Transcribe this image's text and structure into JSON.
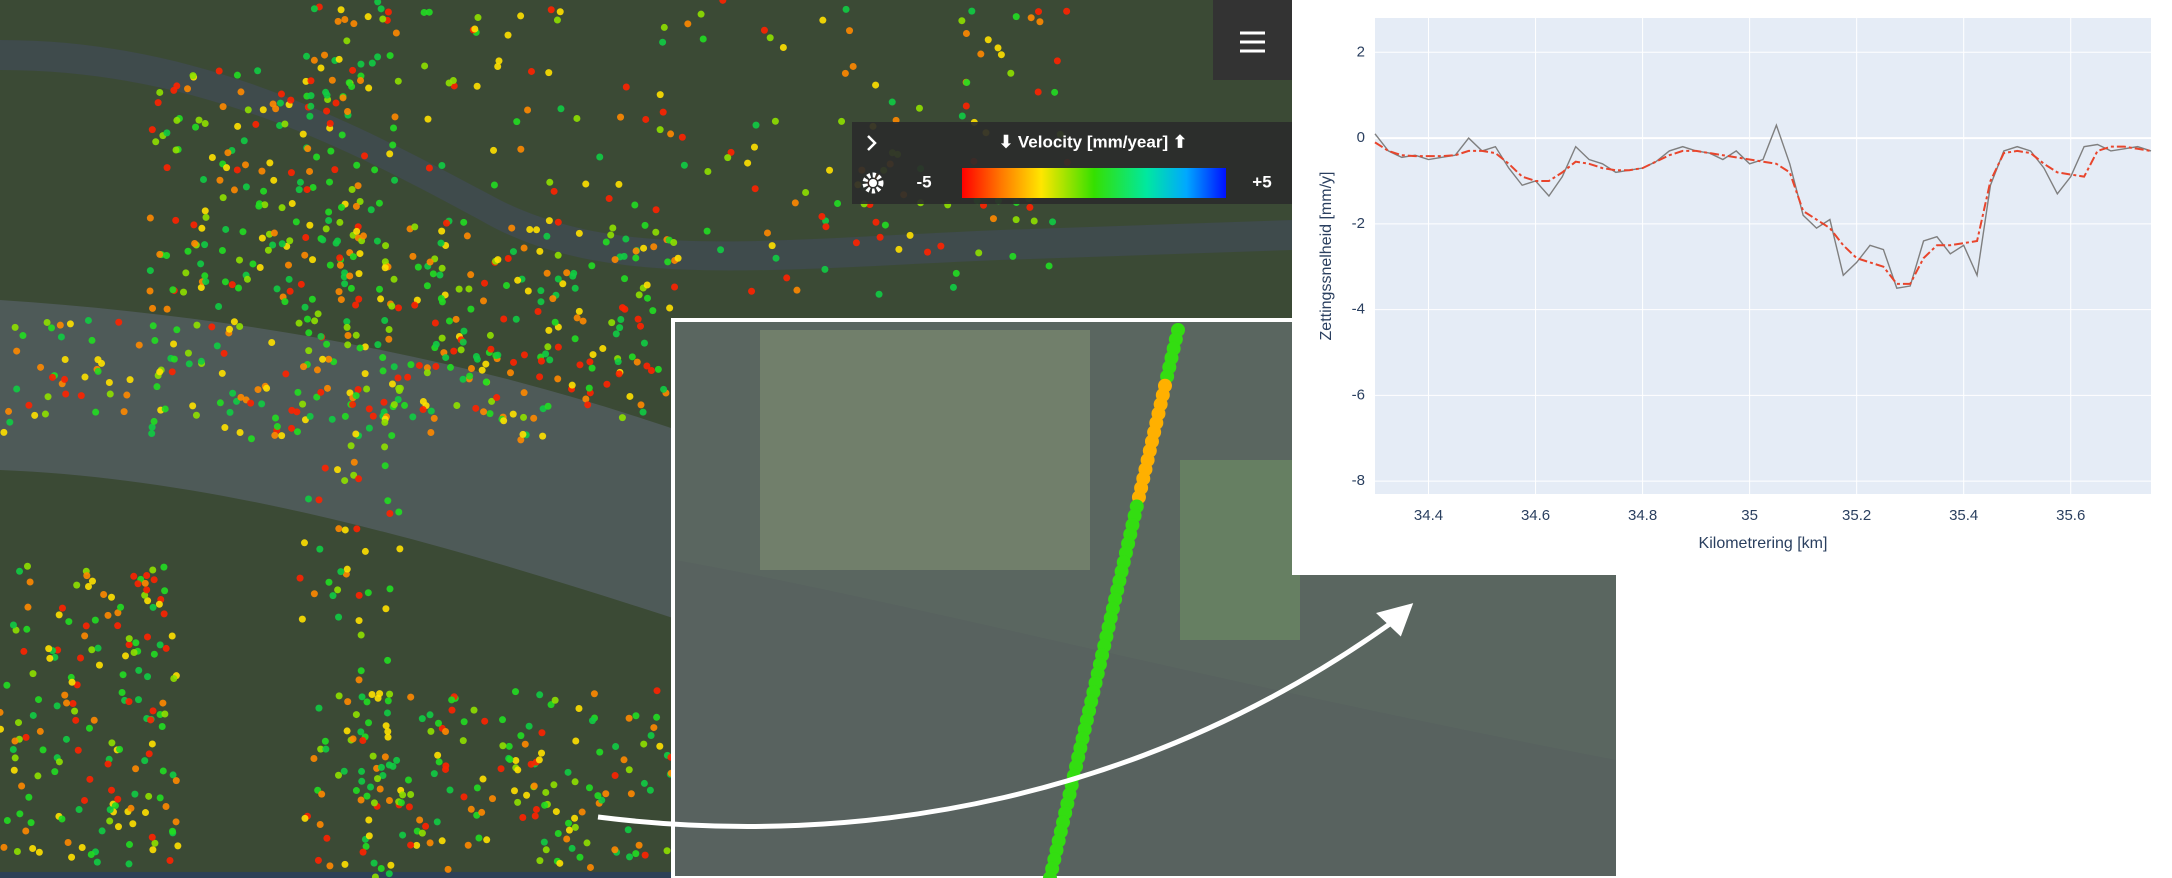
{
  "legend": {
    "title": "⬇ Velocity [mm/year] ⬆",
    "min": "-5",
    "max": "+5"
  },
  "chart_data": {
    "type": "line",
    "x_label": "Kilometrering [km]",
    "y_label": "Zettingssnelheid [mm/y]",
    "x": [
      34.3,
      34.325,
      34.35,
      34.375,
      34.4,
      34.425,
      34.45,
      34.475,
      34.5,
      34.525,
      34.55,
      34.575,
      34.6,
      34.625,
      34.65,
      34.675,
      34.7,
      34.725,
      34.75,
      34.775,
      34.8,
      34.825,
      34.85,
      34.875,
      34.9,
      34.925,
      34.95,
      34.975,
      35,
      35.025,
      35.05,
      35.075,
      35.1,
      35.125,
      35.15,
      35.175,
      35.2,
      35.225,
      35.25,
      35.275,
      35.3,
      35.325,
      35.35,
      35.375,
      35.4,
      35.425,
      35.45,
      35.475,
      35.5,
      35.525,
      35.55,
      35.575,
      35.6,
      35.625,
      35.65,
      35.675,
      35.7,
      35.725,
      35.75
    ],
    "series": [
      {
        "color": "#7f7f7f",
        "dash": "solid",
        "values": [
          0.1,
          -0.3,
          -0.45,
          -0.4,
          -0.5,
          -0.45,
          -0.4,
          0,
          -0.3,
          -0.2,
          -0.7,
          -1.1,
          -1,
          -1.35,
          -0.9,
          -0.2,
          -0.5,
          -0.6,
          -0.8,
          -0.75,
          -0.7,
          -0.55,
          -0.3,
          -0.2,
          -0.3,
          -0.35,
          -0.5,
          -0.3,
          -0.6,
          -0.5,
          0.3,
          -0.6,
          -1.8,
          -2.1,
          -1.9,
          -3.2,
          -2.9,
          -2.5,
          -2.6,
          -3.5,
          -3.45,
          -2.4,
          -2.3,
          -2.7,
          -2.5,
          -3.2,
          -1.1,
          -0.3,
          -0.2,
          -0.3,
          -0.7,
          -1.3,
          -0.9,
          -0.2,
          -0.15,
          -0.3,
          -0.25,
          -0.2,
          -0.3
        ]
      },
      {
        "color": "#e8452c",
        "dash": "dashdot",
        "values": [
          -0.1,
          -0.3,
          -0.4,
          -0.42,
          -0.42,
          -0.42,
          -0.4,
          -0.3,
          -0.3,
          -0.35,
          -0.6,
          -0.9,
          -1,
          -1,
          -0.8,
          -0.55,
          -0.6,
          -0.7,
          -0.75,
          -0.75,
          -0.7,
          -0.55,
          -0.4,
          -0.3,
          -0.3,
          -0.35,
          -0.4,
          -0.45,
          -0.5,
          -0.55,
          -0.6,
          -0.8,
          -1.7,
          -1.9,
          -2.1,
          -2.5,
          -2.8,
          -2.9,
          -3,
          -3.4,
          -3.4,
          -2.8,
          -2.5,
          -2.5,
          -2.45,
          -2.4,
          -1,
          -0.35,
          -0.3,
          -0.35,
          -0.6,
          -0.8,
          -0.85,
          -0.9,
          -0.3,
          -0.2,
          -0.2,
          -0.25,
          -0.3
        ]
      }
    ],
    "xlim": [
      34.3,
      35.75
    ],
    "xticks": [
      34.4,
      34.6,
      34.8,
      35,
      35.2,
      35.4,
      35.6
    ],
    "ylim": [
      -8.3,
      2.8
    ],
    "yticks": [
      2,
      0,
      -2,
      -4,
      -6,
      -8
    ],
    "grid": true
  }
}
